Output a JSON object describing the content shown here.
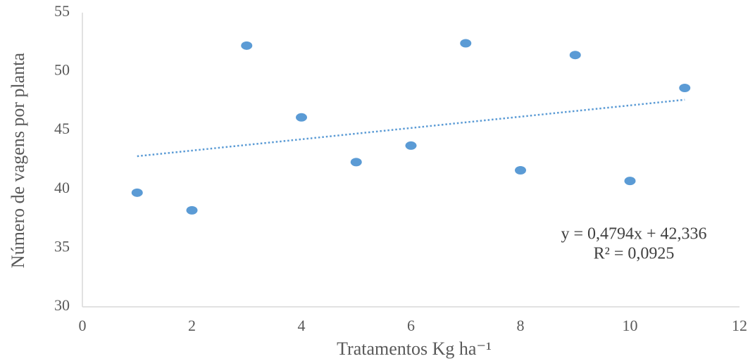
{
  "chart_data": {
    "type": "scatter",
    "x_label": "Tratamentos Kg ha⁻¹",
    "y_label": "Número de vagens por planta",
    "x": [
      1,
      2,
      3,
      4,
      5,
      6,
      7,
      8,
      9,
      10,
      11
    ],
    "values": [
      39.7,
      38.2,
      52.2,
      46.1,
      42.3,
      43.7,
      52.4,
      41.6,
      51.4,
      40.7,
      48.6
    ],
    "color": "#5b9bd5",
    "trendline": {
      "x": [
        1,
        11
      ],
      "values": [
        42.8,
        47.6
      ],
      "color": "#5b9bd5"
    },
    "annotations": [
      "y = 0,4794x + 42,336",
      "R² = 0,0925"
    ],
    "xlim": [
      0,
      12
    ],
    "xticks": [
      0,
      2,
      4,
      6,
      8,
      10,
      12
    ],
    "ylim": [
      30,
      55
    ],
    "yticks": [
      30,
      35,
      40,
      45,
      50,
      55
    ],
    "grid": false
  }
}
